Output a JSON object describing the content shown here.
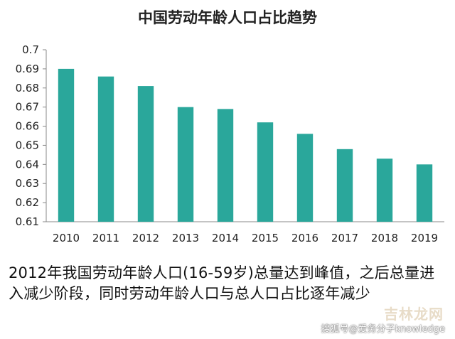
{
  "chart_data": {
    "type": "bar",
    "title": "中国劳动年龄人口占比趋势",
    "categories": [
      "2010",
      "2011",
      "2012",
      "2013",
      "2014",
      "2015",
      "2016",
      "2017",
      "2018",
      "2019"
    ],
    "values": [
      0.69,
      0.686,
      0.681,
      0.67,
      0.669,
      0.662,
      0.656,
      0.648,
      0.643,
      0.64
    ],
    "ylim": [
      0.61,
      0.7
    ],
    "yticks": [
      "0.61",
      "0.62",
      "0.63",
      "0.64",
      "0.65",
      "0.66",
      "0.67",
      "0.68",
      "0.69",
      "0.7"
    ],
    "xlabel": "",
    "ylabel": "",
    "grid": false,
    "bar_color": "#2aa79b"
  },
  "caption": "2012年我国劳动年龄人口(16-59岁)总量达到峰值，之后总量进入减少阶段，同时劳动年龄人口与总人口占比逐年减少",
  "watermark": {
    "site": "吉林龙网",
    "account": "搜狐号@爱务分子knowledge"
  }
}
